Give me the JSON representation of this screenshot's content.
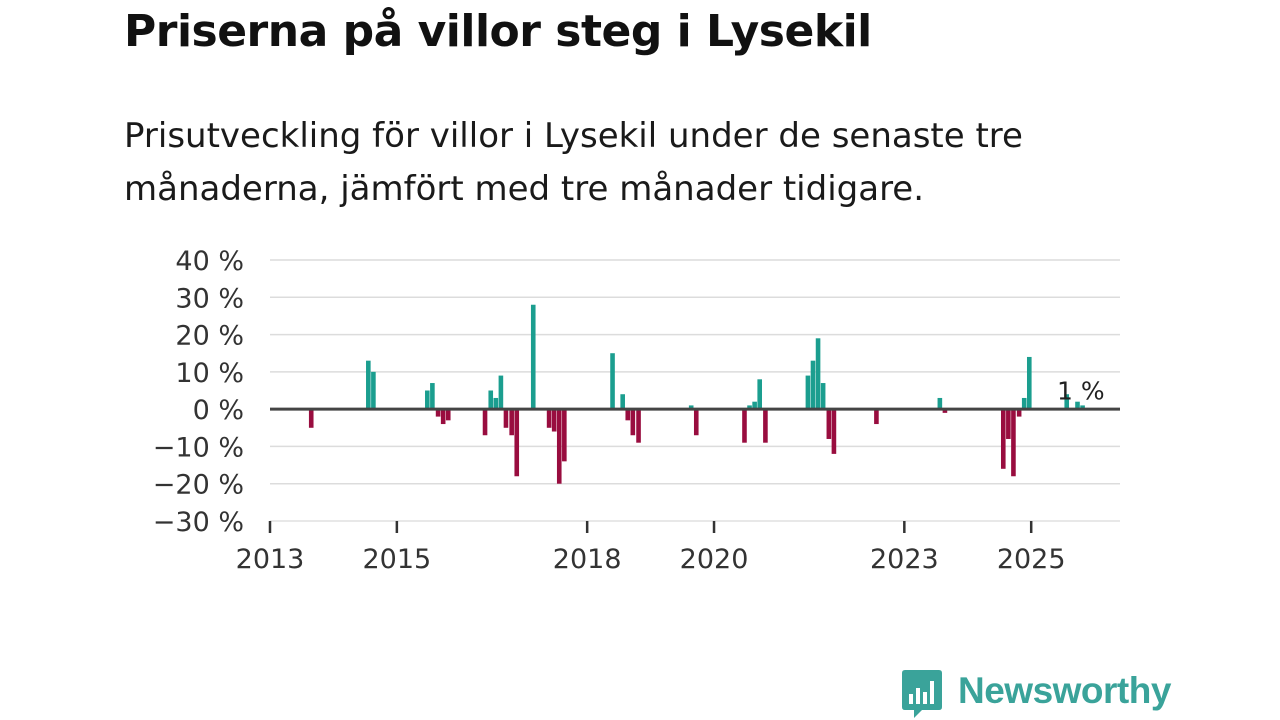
{
  "title": "Priserna på villor steg i Lysekil",
  "subtitle": "Prisutveckling för villor i Lysekil under de senaste tre månaderna, jämfört med tre månader tidigare.",
  "colors": {
    "positive": "#1b9e8f",
    "negative": "#990d3f",
    "grid": "#dcdcdc",
    "zero": "#444444",
    "logo": "#3aa39a"
  },
  "logo": {
    "text": "Newsworthy",
    "icon": "bar-chart-speech-bubble-icon"
  },
  "chart_data": {
    "type": "bar",
    "title": "",
    "xlabel": "",
    "ylabel": "",
    "ylim": [
      -30,
      40
    ],
    "yticks": [
      40,
      30,
      20,
      10,
      0,
      -10,
      -20,
      -30
    ],
    "ytick_labels": [
      "40 %",
      "30 %",
      "20 %",
      "10 %",
      "0 %",
      "−10 %",
      "−20 %",
      "−30 %"
    ],
    "xlim": [
      2013.0,
      2026.4
    ],
    "xticks": [
      2013,
      2015,
      2018,
      2020,
      2023,
      2025
    ],
    "xtick_labels": [
      "2013",
      "2015",
      "2018",
      "2020",
      "2023",
      "2025"
    ],
    "grid": true,
    "annotation": {
      "text": "1 %",
      "x": 2025.85,
      "y": 1
    },
    "series": [
      {
        "name": "Prisutveckling",
        "points": [
          {
            "x": 2013.65,
            "y": -5
          },
          {
            "x": 2014.55,
            "y": 13
          },
          {
            "x": 2014.63,
            "y": 10
          },
          {
            "x": 2015.48,
            "y": 5
          },
          {
            "x": 2015.56,
            "y": 7
          },
          {
            "x": 2015.65,
            "y": -2
          },
          {
            "x": 2015.73,
            "y": -4
          },
          {
            "x": 2015.81,
            "y": -3
          },
          {
            "x": 2016.39,
            "y": -7
          },
          {
            "x": 2016.48,
            "y": 5
          },
          {
            "x": 2016.56,
            "y": 3
          },
          {
            "x": 2016.64,
            "y": 9
          },
          {
            "x": 2016.72,
            "y": -5
          },
          {
            "x": 2016.81,
            "y": -7
          },
          {
            "x": 2016.89,
            "y": -18
          },
          {
            "x": 2017.15,
            "y": 28
          },
          {
            "x": 2017.4,
            "y": -5
          },
          {
            "x": 2017.48,
            "y": -6
          },
          {
            "x": 2017.56,
            "y": -20
          },
          {
            "x": 2017.64,
            "y": -14
          },
          {
            "x": 2018.4,
            "y": 15
          },
          {
            "x": 2018.56,
            "y": 4
          },
          {
            "x": 2018.64,
            "y": -3
          },
          {
            "x": 2018.72,
            "y": -7
          },
          {
            "x": 2018.81,
            "y": -9
          },
          {
            "x": 2019.64,
            "y": 1
          },
          {
            "x": 2019.72,
            "y": -7
          },
          {
            "x": 2020.48,
            "y": -9
          },
          {
            "x": 2020.56,
            "y": 1
          },
          {
            "x": 2020.64,
            "y": 2
          },
          {
            "x": 2020.72,
            "y": 8
          },
          {
            "x": 2020.81,
            "y": -9
          },
          {
            "x": 2021.48,
            "y": 9
          },
          {
            "x": 2021.56,
            "y": 13
          },
          {
            "x": 2021.64,
            "y": 19
          },
          {
            "x": 2021.72,
            "y": 7
          },
          {
            "x": 2021.81,
            "y": -8
          },
          {
            "x": 2021.89,
            "y": -12
          },
          {
            "x": 2022.56,
            "y": -4
          },
          {
            "x": 2023.56,
            "y": 3
          },
          {
            "x": 2023.64,
            "y": -1
          },
          {
            "x": 2024.56,
            "y": -16
          },
          {
            "x": 2024.64,
            "y": -8
          },
          {
            "x": 2024.72,
            "y": -18
          },
          {
            "x": 2024.81,
            "y": -2
          },
          {
            "x": 2024.89,
            "y": 3
          },
          {
            "x": 2024.97,
            "y": 14
          },
          {
            "x": 2025.56,
            "y": 4
          },
          {
            "x": 2025.73,
            "y": 2
          },
          {
            "x": 2025.81,
            "y": 1
          }
        ]
      }
    ]
  }
}
